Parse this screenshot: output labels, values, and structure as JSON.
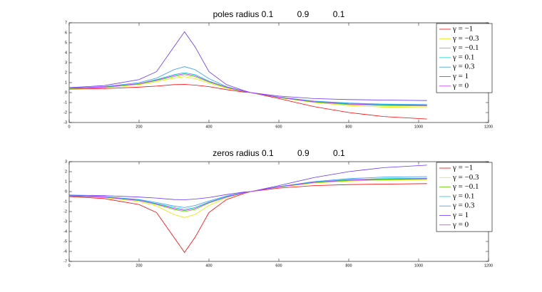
{
  "chart_data": [
    {
      "type": "line",
      "title": "poles radius 0.1          0.9          0.1",
      "x": [
        0,
        100,
        200,
        250,
        300,
        330,
        360,
        400,
        450,
        500,
        520,
        600,
        700,
        800,
        900,
        1024
      ],
      "xlim": [
        0,
        1200
      ],
      "xticks": [
        0,
        200,
        400,
        600,
        800,
        1000,
        1200
      ],
      "ylim": [
        -3,
        7
      ],
      "yticks": [
        -3,
        -2,
        -1,
        0,
        1,
        2,
        3,
        4,
        5,
        6,
        7
      ],
      "legend": "northeast",
      "series": [
        {
          "name": "γ = −1",
          "color": "#ff0000",
          "values": [
            0.35,
            0.4,
            0.55,
            0.65,
            0.8,
            0.82,
            0.75,
            0.6,
            0.3,
            0.05,
            0,
            -0.6,
            -1.4,
            -2.0,
            -2.4,
            -2.65
          ]
        },
        {
          "name": "γ = −0.3",
          "color": "#e6e600",
          "values": [
            0.4,
            0.5,
            0.8,
            1.1,
            1.45,
            1.6,
            1.4,
            0.95,
            0.45,
            0.1,
            0,
            -0.5,
            -1.0,
            -1.3,
            -1.45,
            -1.5
          ]
        },
        {
          "name": "γ = −0.1",
          "color": "#66dd00",
          "values": [
            0.4,
            0.5,
            0.85,
            1.2,
            1.6,
            1.8,
            1.6,
            1.05,
            0.5,
            0.1,
            0,
            -0.5,
            -0.95,
            -1.2,
            -1.3,
            -1.35
          ]
        },
        {
          "name": "γ = 0.1",
          "color": "#00d0d0",
          "values": [
            0.45,
            0.55,
            0.9,
            1.3,
            1.8,
            2.0,
            1.8,
            1.15,
            0.55,
            0.12,
            0,
            -0.45,
            -0.9,
            -1.1,
            -1.2,
            -1.25
          ]
        },
        {
          "name": "γ = 0.3",
          "color": "#3399ff",
          "values": [
            0.45,
            0.6,
            1.0,
            1.45,
            2.3,
            2.6,
            2.3,
            1.4,
            0.6,
            0.15,
            0,
            -0.45,
            -0.85,
            -1.05,
            -1.15,
            -1.2
          ]
        },
        {
          "name": "γ = 1",
          "color": "#6633ff",
          "values": [
            0.5,
            0.7,
            1.3,
            2.1,
            4.6,
            6.1,
            4.6,
            2.1,
            0.8,
            0.2,
            0,
            -0.35,
            -0.6,
            -0.7,
            -0.75,
            -0.8
          ]
        },
        {
          "name": "γ = 0",
          "color": "#cc33ff",
          "values": [
            0.45,
            0.55,
            0.9,
            1.25,
            1.7,
            1.9,
            1.7,
            1.1,
            0.55,
            0.12,
            0,
            -0.47,
            -0.92,
            -1.15,
            -1.25,
            -1.3
          ]
        }
      ]
    },
    {
      "type": "line",
      "title": "zeros radius 0.1          0.9          0.1",
      "x": [
        0,
        100,
        200,
        250,
        300,
        330,
        360,
        400,
        450,
        500,
        520,
        600,
        700,
        800,
        900,
        1024
      ],
      "xlim": [
        0,
        1200
      ],
      "xticks": [
        0,
        200,
        400,
        600,
        800,
        1000,
        1200
      ],
      "ylim": [
        -7,
        3
      ],
      "yticks": [
        -7,
        -6,
        -5,
        -4,
        -3,
        -2,
        -1,
        0,
        1,
        2,
        3
      ],
      "legend": "northeast",
      "series": [
        {
          "name": "γ = −1",
          "color": "#ff0000",
          "values": [
            -0.5,
            -0.7,
            -1.3,
            -2.1,
            -4.6,
            -6.1,
            -4.6,
            -2.1,
            -0.8,
            -0.2,
            0,
            0.35,
            0.6,
            0.7,
            0.75,
            0.8
          ]
        },
        {
          "name": "γ = −0.3",
          "color": "#e6e600",
          "values": [
            -0.45,
            -0.6,
            -1.0,
            -1.45,
            -2.3,
            -2.6,
            -2.3,
            -1.4,
            -0.6,
            -0.15,
            0,
            0.45,
            0.85,
            1.05,
            1.15,
            1.2
          ]
        },
        {
          "name": "γ = −0.1",
          "color": "#66dd00",
          "values": [
            -0.45,
            -0.55,
            -0.9,
            -1.3,
            -1.8,
            -2.0,
            -1.8,
            -1.15,
            -0.55,
            -0.12,
            0,
            0.45,
            0.9,
            1.1,
            1.2,
            1.25
          ]
        },
        {
          "name": "γ = 0.1",
          "color": "#00d0d0",
          "values": [
            -0.4,
            -0.5,
            -0.85,
            -1.2,
            -1.6,
            -1.8,
            -1.6,
            -1.05,
            -0.5,
            -0.1,
            0,
            0.5,
            0.95,
            1.2,
            1.3,
            1.35
          ]
        },
        {
          "name": "γ = 0.3",
          "color": "#3399ff",
          "values": [
            -0.4,
            -0.5,
            -0.8,
            -1.1,
            -1.45,
            -1.6,
            -1.4,
            -0.95,
            -0.45,
            -0.1,
            0,
            0.5,
            1.0,
            1.3,
            1.45,
            1.5
          ]
        },
        {
          "name": "γ = 1",
          "color": "#6633ff",
          "values": [
            -0.35,
            -0.4,
            -0.55,
            -0.65,
            -0.8,
            -0.82,
            -0.75,
            -0.6,
            -0.3,
            -0.05,
            0,
            0.6,
            1.4,
            2.0,
            2.4,
            2.65
          ]
        },
        {
          "name": "γ = 0",
          "color": "#cc33ff",
          "values": [
            -0.45,
            -0.55,
            -0.9,
            -1.25,
            -1.7,
            -1.9,
            -1.7,
            -1.1,
            -0.55,
            -0.12,
            0,
            0.47,
            0.92,
            1.15,
            1.25,
            1.3
          ]
        }
      ]
    }
  ]
}
